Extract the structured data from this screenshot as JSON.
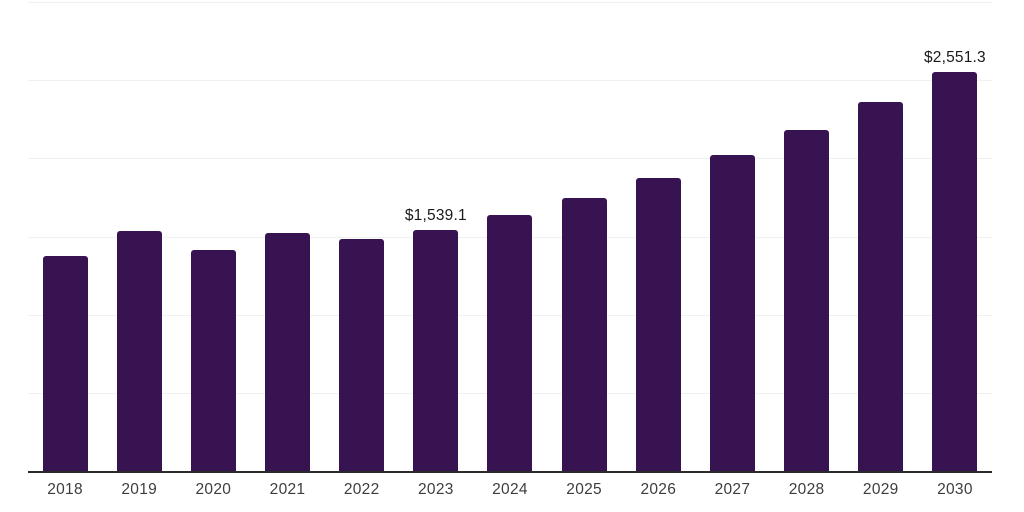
{
  "chart_data": {
    "type": "bar",
    "title": "",
    "xlabel": "",
    "ylabel": "",
    "ylim": [
      0,
      3000
    ],
    "grid_step": 500,
    "grid_visible": true,
    "legend_visible": false,
    "y_axis_labels_visible": false,
    "categories": [
      "2018",
      "2019",
      "2020",
      "2021",
      "2022",
      "2023",
      "2024",
      "2025",
      "2026",
      "2027",
      "2028",
      "2029",
      "2030"
    ],
    "points": [
      {
        "year": "2018",
        "value": 1375.0,
        "label": ""
      },
      {
        "year": "2019",
        "value": 1532.5,
        "label": ""
      },
      {
        "year": "2020",
        "value": 1411.0,
        "label": ""
      },
      {
        "year": "2021",
        "value": 1523.5,
        "label": ""
      },
      {
        "year": "2022",
        "value": 1481.5,
        "label": ""
      },
      {
        "year": "2023",
        "value": 1539.1,
        "label": "$1,539.1"
      },
      {
        "year": "2024",
        "value": 1638.0,
        "label": ""
      },
      {
        "year": "2025",
        "value": 1743.5,
        "label": ""
      },
      {
        "year": "2026",
        "value": 1873.0,
        "label": ""
      },
      {
        "year": "2027",
        "value": 2018.5,
        "label": ""
      },
      {
        "year": "2028",
        "value": 2178.5,
        "label": ""
      },
      {
        "year": "2029",
        "value": 2357.5,
        "label": ""
      },
      {
        "year": "2030",
        "value": 2551.3,
        "label": "$2,551.3"
      }
    ],
    "annotated_values": [
      "$1,539.1",
      "$2,551.3"
    ]
  },
  "style": {
    "bar_color": "#371351",
    "grid_color": "#f0f0f1",
    "axis_color": "#2b2b2b",
    "tick_color": "#3d3d3d",
    "label_color": "#1a1a1a",
    "background_color": "#ffffff"
  }
}
